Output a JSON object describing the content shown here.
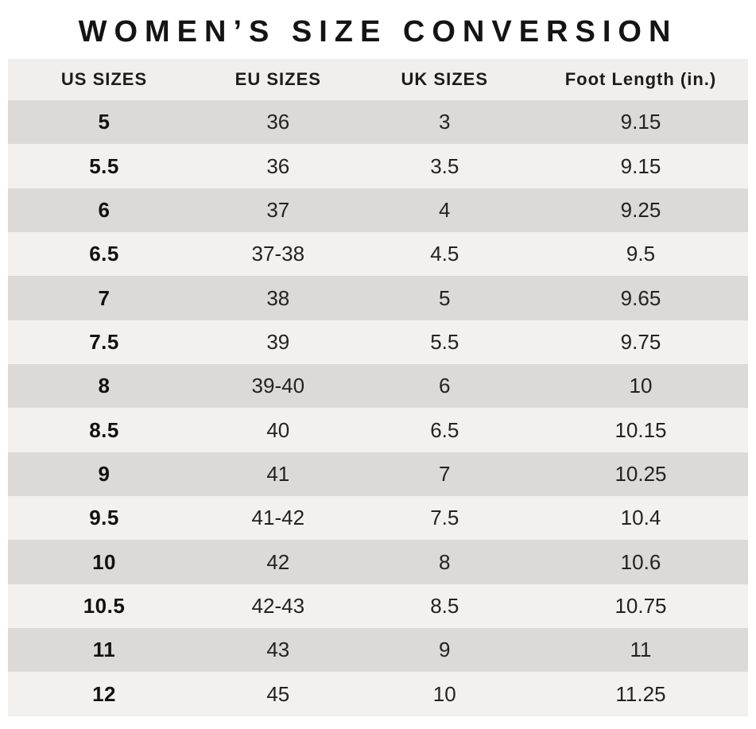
{
  "chart_data": {
    "type": "table",
    "title": "WOMEN’S SIZE CONVERSION",
    "columns": [
      "US SIZES",
      "EU SIZES",
      "UK SIZES",
      "Foot Length (in.)"
    ],
    "rows": [
      [
        "5",
        "36",
        "3",
        "9.15"
      ],
      [
        "5.5",
        "36",
        "3.5",
        "9.15"
      ],
      [
        "6",
        "37",
        "4",
        "9.25"
      ],
      [
        "6.5",
        "37-38",
        "4.5",
        "9.5"
      ],
      [
        "7",
        "38",
        "5",
        "9.65"
      ],
      [
        "7.5",
        "39",
        "5.5",
        "9.75"
      ],
      [
        "8",
        "39-40",
        "6",
        "10"
      ],
      [
        "8.5",
        "40",
        "6.5",
        "10.15"
      ],
      [
        "9",
        "41",
        "7",
        "10.25"
      ],
      [
        "9.5",
        "41-42",
        "7.5",
        "10.4"
      ],
      [
        "10",
        "42",
        "8",
        "10.6"
      ],
      [
        "10.5",
        "42-43",
        "8.5",
        "10.75"
      ],
      [
        "11",
        "43",
        "9",
        "11"
      ],
      [
        "12",
        "45",
        "10",
        "11.25"
      ]
    ],
    "layout": {
      "row_striping": "first data row gray, alternating gray/light",
      "grid": false,
      "legend": "none"
    },
    "colors": {
      "row_gray": "#dbdad9",
      "row_light": "#f2f1f0",
      "header_bg": "#f0efee",
      "title_text": "#141414",
      "cell_text": "#222222",
      "page_background": "#ffffff"
    }
  }
}
